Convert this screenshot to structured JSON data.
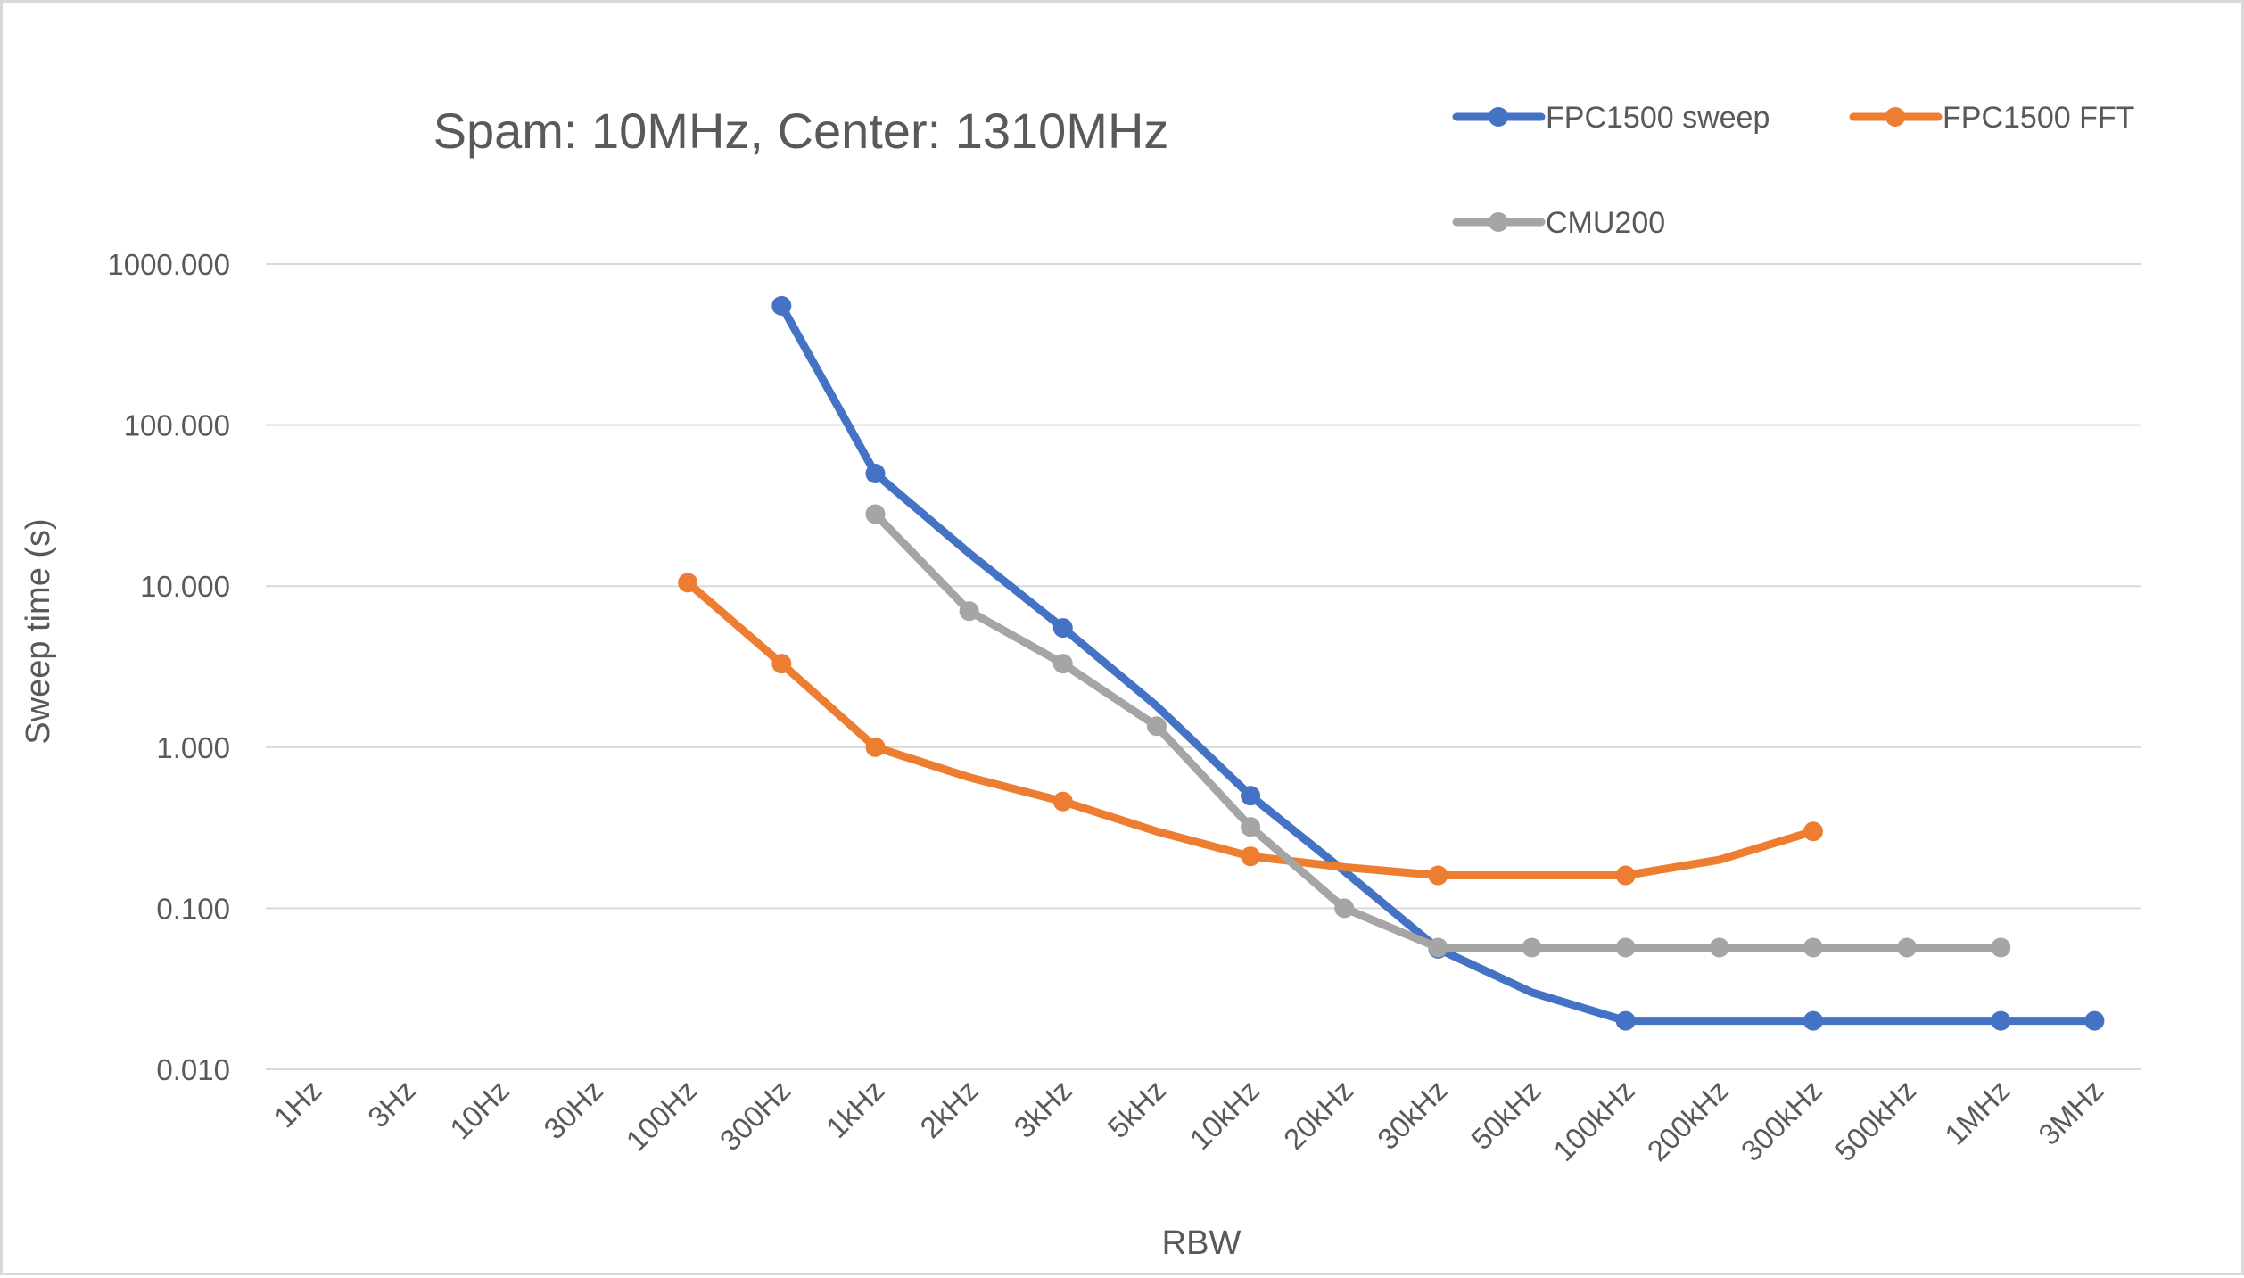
{
  "chart_data": {
    "type": "line",
    "title": "Spam: 10MHz, Center: 1310MHz",
    "xlabel": "RBW",
    "ylabel": "Sweep time (s)",
    "yscale": "log",
    "ylim": [
      0.01,
      1000
    ],
    "yticks": [
      "1000.000",
      "100.000",
      "10.000",
      "1.000",
      "0.100",
      "0.010"
    ],
    "categories": [
      "1Hz",
      "3Hz",
      "10Hz",
      "30Hz",
      "100Hz",
      "300Hz",
      "1kHz",
      "2kHz",
      "3kHz",
      "5kHz",
      "10kHz",
      "20kHz",
      "30kHz",
      "50kHz",
      "100kHz",
      "200kHz",
      "300kHz",
      "500kHz",
      "1MHz",
      "3MHz"
    ],
    "grid": true,
    "legend_position": "top-right",
    "series": [
      {
        "name": "FPC1500 sweep",
        "color": "#4472c4",
        "values": [
          null,
          null,
          null,
          null,
          null,
          550,
          50,
          16,
          5.5,
          1.8,
          0.5,
          0.17,
          0.056,
          0.03,
          0.02,
          0.02,
          0.02,
          0.02,
          0.02,
          0.02
        ],
        "markers": [
          5,
          6,
          8,
          10,
          12,
          14,
          16,
          18,
          19
        ]
      },
      {
        "name": "FPC1500 FFT",
        "color": "#ed7d31",
        "values": [
          null,
          null,
          null,
          null,
          10.5,
          3.3,
          1.0,
          0.65,
          0.46,
          0.3,
          0.21,
          0.18,
          0.16,
          0.16,
          0.16,
          0.2,
          0.3,
          null,
          null,
          null
        ],
        "markers": [
          4,
          5,
          6,
          8,
          10,
          12,
          14,
          16
        ]
      },
      {
        "name": "CMU200",
        "color": "#a5a5a5",
        "values": [
          null,
          null,
          null,
          null,
          null,
          null,
          28,
          7.0,
          3.3,
          1.35,
          0.32,
          0.1,
          0.057,
          0.057,
          0.057,
          0.057,
          0.057,
          0.057,
          0.057,
          null
        ],
        "markers": [
          6,
          7,
          8,
          9,
          10,
          11,
          12,
          13,
          14,
          15,
          16,
          17,
          18
        ]
      }
    ]
  }
}
